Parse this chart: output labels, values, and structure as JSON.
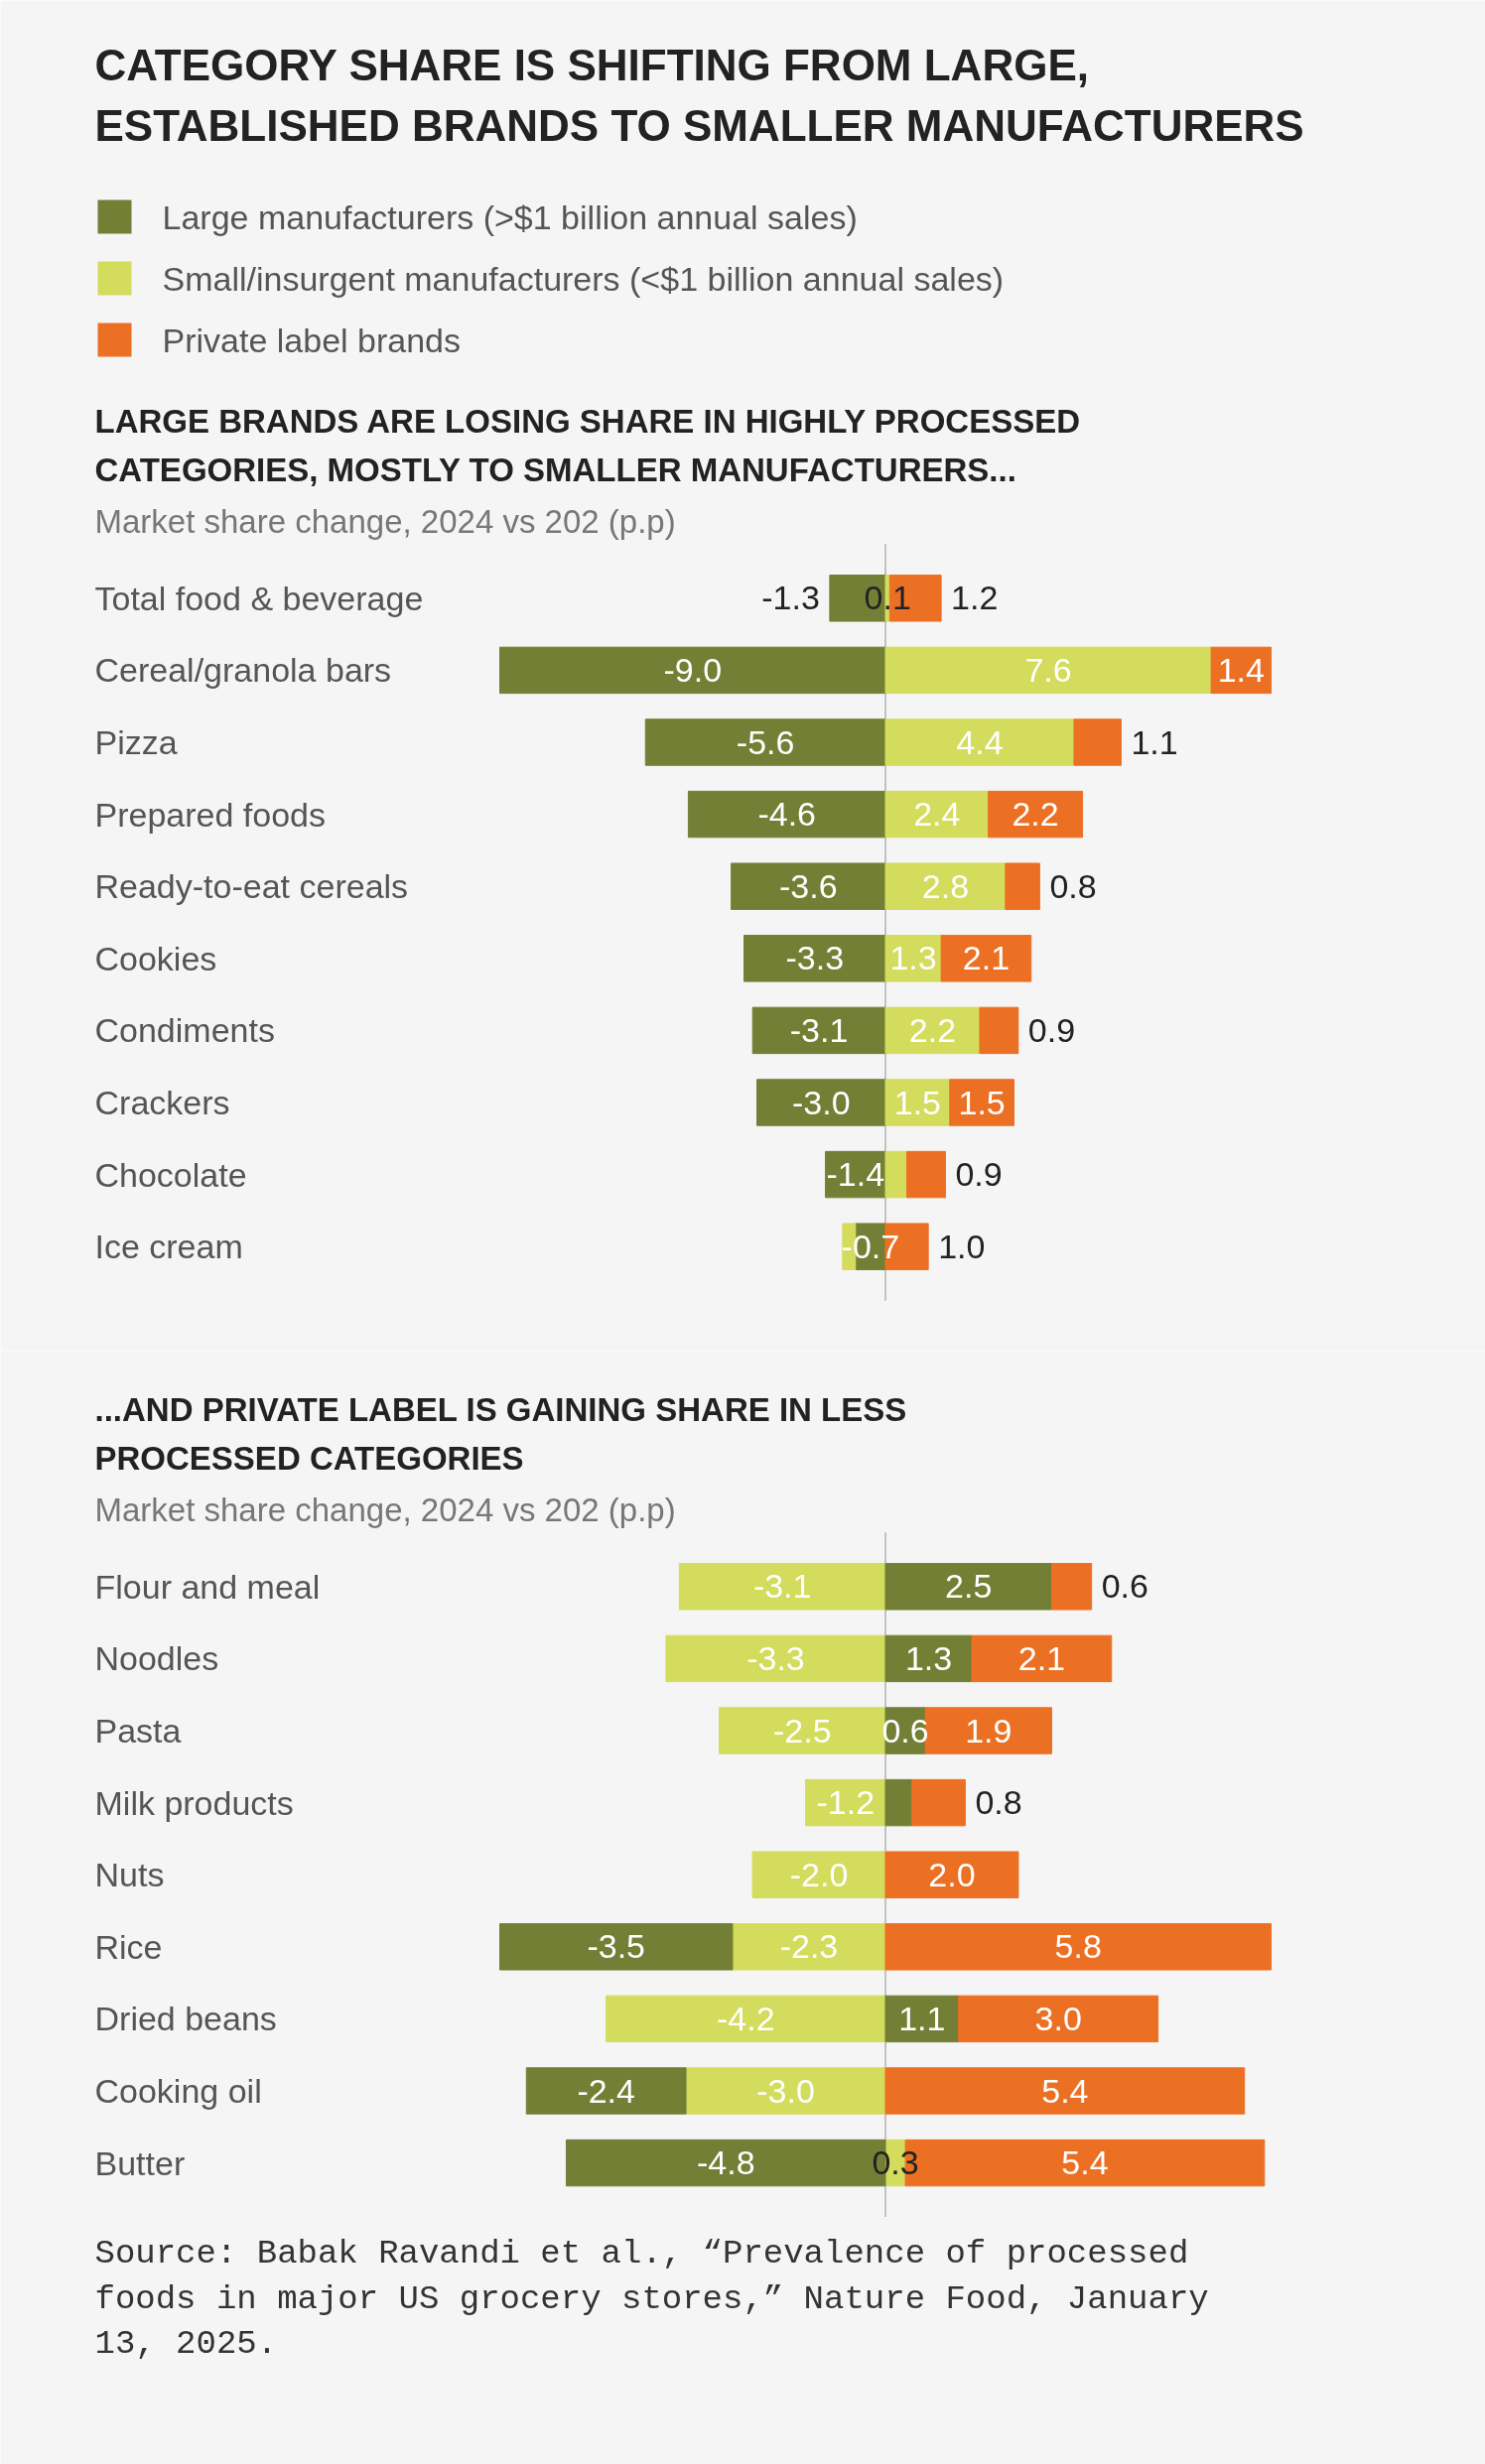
{
  "chart_data": [
    {
      "type": "bar",
      "orientation": "horizontal",
      "stacked": true,
      "title": "CATEGORY SHARE IS SHIFTING FROM LARGE, ESTABLISHED BRANDS TO SMALLER MANUFACTURERS",
      "subtitle": "LARGE BRANDS ARE LOSING SHARE IN HIGHLY PROCESSED CATEGORIES, MOSTLY TO SMALLER MANUFACTURERS...",
      "xlabel": "Market share change, 2024 vs 202 (p.p)",
      "legend": "top",
      "grid": false,
      "tick_labels": false,
      "categories": [
        "Total food & beverage",
        "Cereal/granola bars",
        "Pizza",
        "Prepared foods",
        "Ready-to-eat cereals",
        "Cookies",
        "Condiments",
        "Crackers",
        "Chocolate",
        "Ice cream"
      ],
      "series": [
        {
          "name": "Large manufacturers (>$1 billion annual sales)",
          "color": "#737f35",
          "values": [
            -1.3,
            -9.0,
            -5.6,
            -4.6,
            -3.6,
            -3.3,
            -3.1,
            -3.0,
            -1.4,
            -0.7
          ],
          "value_labels": [
            "-1.3",
            "-9.0",
            "-5.6",
            "-4.6",
            "-3.6",
            "-3.3",
            "-3.1",
            "-3.0",
            "-1.4",
            "-0.7"
          ]
        },
        {
          "name": "Small/insurgent manufacturers (<$1 billion annual sales)",
          "color": "#d3dc5c",
          "values": [
            0.1,
            7.6,
            4.4,
            2.4,
            2.8,
            1.3,
            2.2,
            1.5,
            0.5,
            -0.3
          ],
          "value_labels": [
            "0.1",
            "7.6",
            "4.4",
            "2.4",
            "2.8",
            "1.3",
            "2.2",
            "1.5",
            null,
            null
          ]
        },
        {
          "name": "Private label brands",
          "color": "#ec7024",
          "values": [
            1.2,
            1.4,
            1.1,
            2.2,
            0.8,
            2.1,
            0.9,
            1.5,
            0.9,
            1.0
          ],
          "value_labels": [
            "1.2",
            "1.4",
            "1.1",
            "2.2",
            "0.8",
            "2.1",
            "0.9",
            "1.5",
            "0.9",
            "1.0"
          ]
        }
      ]
    },
    {
      "type": "bar",
      "orientation": "horizontal",
      "stacked": true,
      "title": "...AND PRIVATE LABEL IS GAINING SHARE IN LESS PROCESSED CATEGORIES",
      "xlabel": "Market share change, 2024 vs 202 (p.p)",
      "grid": false,
      "tick_labels": false,
      "categories": [
        "Flour and meal",
        "Noodles",
        "Pasta",
        "Milk products",
        "Nuts",
        "Rice",
        "Dried beans",
        "Cooking oil",
        "Butter"
      ],
      "series": [
        {
          "color": "#d3dc5c",
          "values": [
            -3.1,
            -3.3,
            -2.5,
            -1.2,
            -2.0,
            -2.3,
            -4.2,
            -3.0,
            0.3
          ],
          "value_labels": [
            "-3.1",
            "-3.3",
            "-2.5",
            "-1.2",
            "-2.0",
            "-2.3",
            "-4.2",
            "-3.0",
            "0.3"
          ]
        },
        {
          "color": "#737f35",
          "values": [
            2.5,
            1.3,
            0.6,
            0.4,
            null,
            -3.5,
            1.1,
            -2.4,
            -4.8
          ],
          "value_labels": [
            "2.5",
            "1.3",
            "0.6",
            null,
            null,
            "-3.5",
            "1.1",
            "-2.4",
            "-4.8"
          ]
        },
        {
          "color": "#ec7024",
          "values": [
            0.6,
            2.1,
            1.9,
            0.8,
            2.0,
            5.8,
            3.0,
            5.4,
            5.4
          ],
          "value_labels": [
            "0.6",
            "2.1",
            "1.9",
            "0.8",
            "2.0",
            "5.8",
            "3.0",
            "5.4",
            "5.4"
          ]
        }
      ],
      "annotations": [
        "Source: Babak Ravandi et al., “Prevalence of processed foods in major US grocery stores,” Nature Food, January 13, 2025."
      ]
    }
  ]
}
